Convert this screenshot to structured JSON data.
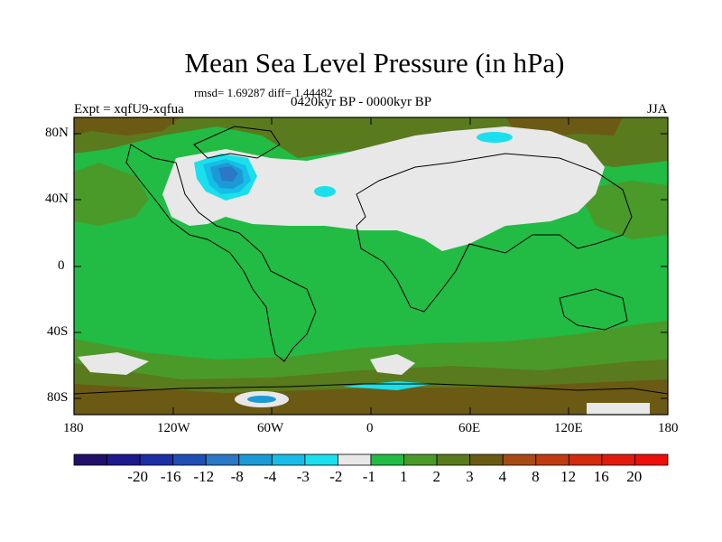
{
  "figure": {
    "title": "Mean Sea Level Pressure (in hPa)",
    "stats": "rmsd= 1.69287 diff= 1.44482",
    "experiment": "Expt = xqfU9-xqfua",
    "period": "0420kyr BP - 0000kyr BP",
    "season": "JJA"
  },
  "map": {
    "projection": "cylindrical equidistant",
    "lat_range": [
      -90,
      90
    ],
    "lon_range": [
      -180,
      180
    ],
    "lat_ticks": [
      {
        "value": 80,
        "label": "80N"
      },
      {
        "value": 40,
        "label": "40N"
      },
      {
        "value": 0,
        "label": "0"
      },
      {
        "value": -40,
        "label": "40S"
      },
      {
        "value": -80,
        "label": "80S"
      }
    ],
    "lon_ticks": [
      {
        "value": -180,
        "label": "180"
      },
      {
        "value": -120,
        "label": "120W"
      },
      {
        "value": -60,
        "label": "60W"
      },
      {
        "value": 0,
        "label": "0"
      },
      {
        "value": 60,
        "label": "60E"
      },
      {
        "value": 120,
        "label": "120E"
      },
      {
        "value": 180,
        "label": "180"
      }
    ],
    "dominant_class": "1 to 2",
    "features": [
      {
        "name": "Northern-hemisphere high-latitude region",
        "class": "-1 to 1"
      },
      {
        "name": "Negative anomaly over Hudson Bay / Labrador",
        "class": "-8 to -2"
      },
      {
        "name": "Small negative anomaly near 30W 40N",
        "class": "-2 to -1"
      },
      {
        "name": "Small negative anomaly over northern Siberia",
        "class": "-2 to -1"
      },
      {
        "name": "Southern Ocean positive band",
        "class": "2 to 4"
      },
      {
        "name": "Antarctic coast negative anomaly",
        "class": "-3 to -1"
      }
    ]
  },
  "colorbar": {
    "colors": [
      "#20106a",
      "#1c1a8c",
      "#1c2fa6",
      "#1f4fb4",
      "#2a78c6",
      "#1b9ad6",
      "#16bde6",
      "#19e0ec",
      "#e8e8e8",
      "#22bb44",
      "#4a9a2a",
      "#5a7a1e",
      "#6b5a14",
      "#a84a14",
      "#c23a10",
      "#d42a0e",
      "#e21a0c",
      "#ee0f0a"
    ],
    "labels": [
      "-20",
      "-16",
      "-12",
      "-8",
      "-4",
      "-3",
      "-2",
      "-1",
      "1",
      "2",
      "3",
      "4",
      "8",
      "12",
      "16",
      "20"
    ]
  }
}
